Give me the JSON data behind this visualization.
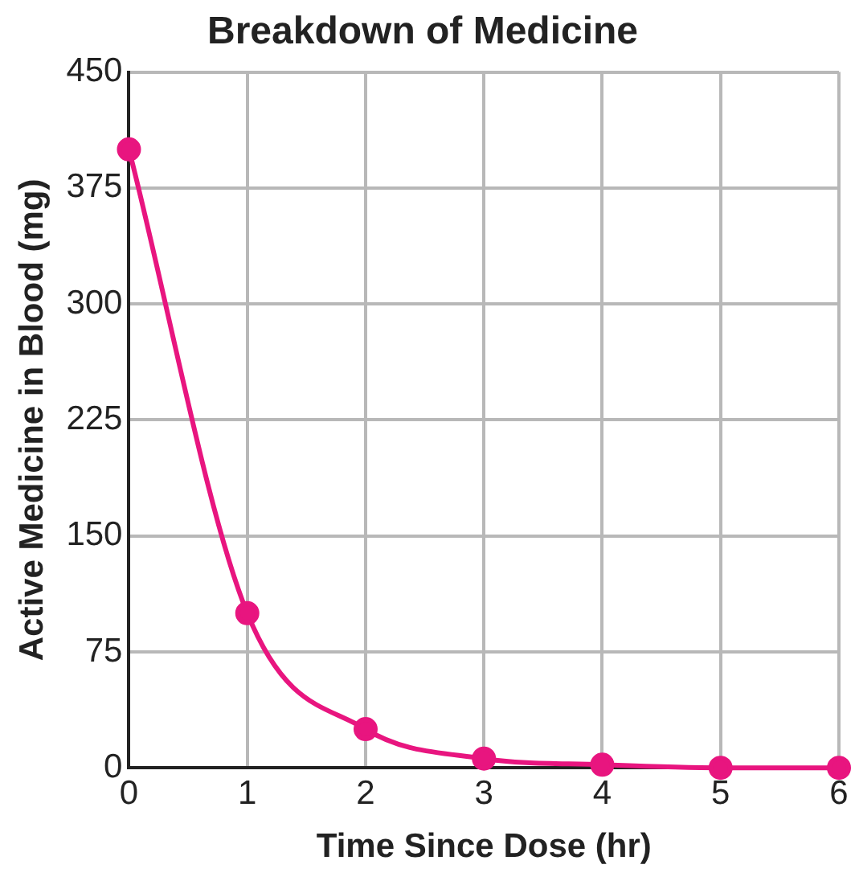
{
  "chart_data": {
    "type": "line",
    "title": "Breakdown of Medicine",
    "xlabel": "Time Since Dose (hr)",
    "ylabel": "Active Medicine in Blood (mg)",
    "x": [
      0,
      1,
      2,
      3,
      4,
      5,
      6
    ],
    "series": [
      {
        "color": "#e8157f",
        "values": [
          400,
          100,
          25,
          6,
          2,
          0,
          0
        ]
      }
    ],
    "xlim": [
      0,
      6
    ],
    "xticks": [
      0,
      1,
      2,
      3,
      4,
      5,
      6
    ],
    "ylim": [
      0,
      450
    ],
    "yticks": [
      0,
      75,
      150,
      225,
      300,
      375,
      450
    ],
    "grid": true,
    "legend": false,
    "marker": "circle",
    "line_style": "solid"
  }
}
